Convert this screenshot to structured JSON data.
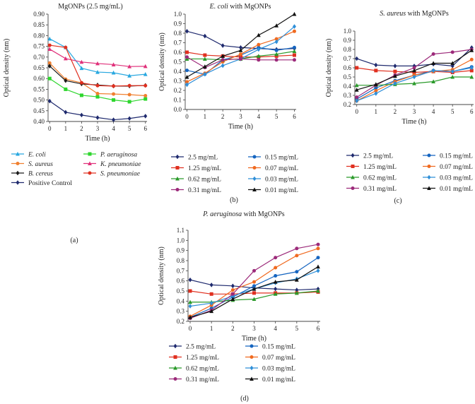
{
  "chart_data": [
    {
      "type": "line",
      "panel_label": "(a)",
      "title": "MgONPs (2.5 mg/mL)",
      "xlabel": "Time (h)",
      "ylabel": "Optical density (nm)",
      "x": [
        0,
        1,
        2,
        3,
        4,
        5,
        6
      ],
      "ylim": [
        0.4,
        0.9
      ],
      "yticks": [
        0.4,
        0.45,
        0.5,
        0.55,
        0.6,
        0.65,
        0.7,
        0.75,
        0.8,
        0.85,
        0.9
      ],
      "ytick_decimals": 2,
      "legend_columns": 2,
      "series": [
        {
          "name": "E. coli",
          "italic": true,
          "color": "#29a8e0",
          "marker": "triangle",
          "values": [
            0.785,
            0.745,
            0.648,
            0.63,
            0.627,
            0.613,
            0.62
          ]
        },
        {
          "name": "P. aeruginosa",
          "italic": true,
          "color": "#2dd62d",
          "marker": "square",
          "values": [
            0.6,
            0.55,
            0.522,
            0.515,
            0.5,
            0.492,
            0.505
          ]
        },
        {
          "name": "S. aureus",
          "italic": true,
          "color": "#f08030",
          "marker": "circle",
          "values": [
            0.672,
            0.597,
            0.58,
            0.53,
            0.528,
            0.525,
            0.52
          ]
        },
        {
          "name": "K. pneumoniae",
          "italic": true,
          "color": "#e0307a",
          "marker": "triangle",
          "values": [
            0.737,
            0.693,
            0.677,
            0.67,
            0.665,
            0.656,
            0.657
          ]
        },
        {
          "name": "B. cereus",
          "italic": true,
          "color": "#1a1a1a",
          "marker": "diamond",
          "values": [
            0.658,
            0.59,
            0.575,
            0.57,
            0.565,
            0.565,
            0.568
          ]
        },
        {
          "name": "S. pneumoniae",
          "italic": true,
          "color": "#e03020",
          "marker": "circle",
          "values": [
            0.755,
            0.745,
            0.58,
            0.567,
            0.565,
            0.567,
            0.567
          ]
        },
        {
          "name": "Positive Control",
          "italic": false,
          "color": "#1f2a6e",
          "marker": "diamond",
          "values": [
            0.495,
            0.443,
            0.43,
            0.418,
            0.408,
            0.414,
            0.425
          ]
        }
      ]
    },
    {
      "type": "line",
      "panel_label": "(b)",
      "title": "E. coli with MgONPs",
      "title_italic_words": 2,
      "xlabel": "Time (h)",
      "ylabel": "Optical density (nm)",
      "x": [
        0,
        1,
        2,
        3,
        4,
        5,
        6
      ],
      "ylim": [
        0.0,
        1.0
      ],
      "yticks": [
        0.0,
        0.1,
        0.2,
        0.3,
        0.4,
        0.5,
        0.6,
        0.7,
        0.8,
        0.9,
        1.0
      ],
      "ytick_decimals": 1,
      "legend_columns": 2,
      "series": [
        {
          "name": "2.5 mg/mL",
          "color": "#1f2a6e",
          "marker": "diamond",
          "values": [
            0.82,
            0.77,
            0.67,
            0.65,
            0.64,
            0.63,
            0.64
          ]
        },
        {
          "name": "0.15 mg/mL",
          "color": "#1565c0",
          "marker": "circle",
          "values": [
            0.41,
            0.37,
            0.52,
            0.57,
            0.65,
            0.62,
            0.65
          ]
        },
        {
          "name": "1.25 mg/mL",
          "color": "#e03020",
          "marker": "square",
          "values": [
            0.6,
            0.57,
            0.56,
            0.55,
            0.55,
            0.56,
            0.57
          ]
        },
        {
          "name": "0.07 mg/mL",
          "color": "#f06a20",
          "marker": "circle",
          "values": [
            0.29,
            0.38,
            0.5,
            0.58,
            0.68,
            0.74,
            0.82
          ]
        },
        {
          "name": "0.62 mg/mL",
          "color": "#2a9a2a",
          "marker": "triangle",
          "values": [
            0.53,
            0.53,
            0.52,
            0.53,
            0.56,
            0.58,
            0.61
          ]
        },
        {
          "name": "0.03 mg/mL",
          "color": "#2f8fd8",
          "marker": "diamond",
          "values": [
            0.26,
            0.37,
            0.46,
            0.53,
            0.63,
            0.71,
            0.87
          ]
        },
        {
          "name": "0.31 mg/mL",
          "color": "#9c2a7a",
          "marker": "circle",
          "values": [
            0.55,
            0.44,
            0.52,
            0.53,
            0.52,
            0.52,
            0.52
          ]
        },
        {
          "name": "0.01 mg/mL",
          "color": "#111111",
          "marker": "triangle",
          "values": [
            0.34,
            0.45,
            0.56,
            0.62,
            0.78,
            0.88,
            1.0
          ]
        }
      ]
    },
    {
      "type": "line",
      "panel_label": "(c)",
      "title": "S. aureus with MgONPs",
      "title_italic_words": 2,
      "xlabel": "Time (h)",
      "ylabel": "Optical density (nm)",
      "x": [
        0,
        1,
        2,
        3,
        4,
        5,
        6
      ],
      "ylim": [
        0.2,
        1.0
      ],
      "yticks": [
        0.2,
        0.3,
        0.4,
        0.5,
        0.6,
        0.7,
        0.8,
        0.9,
        1.0
      ],
      "ytick_decimals": 1,
      "legend_columns": 2,
      "series": [
        {
          "name": "2.5 mg/mL",
          "color": "#1f2a6e",
          "marker": "diamond",
          "values": [
            0.7,
            0.63,
            0.62,
            0.62,
            0.64,
            0.62,
            0.82
          ]
        },
        {
          "name": "0.15 mg/mL",
          "color": "#1565c0",
          "marker": "circle",
          "values": [
            0.26,
            0.38,
            0.46,
            0.52,
            0.57,
            0.56,
            0.61
          ]
        },
        {
          "name": "1.25 mg/mL",
          "color": "#e03020",
          "marker": "square",
          "values": [
            0.6,
            0.57,
            0.56,
            0.55,
            0.56,
            0.55,
            0.57
          ]
        },
        {
          "name": "0.07 mg/mL",
          "color": "#f06a20",
          "marker": "circle",
          "values": [
            0.24,
            0.35,
            0.45,
            0.52,
            0.56,
            0.58,
            0.69
          ]
        },
        {
          "name": "0.62 mg/mL",
          "color": "#2a9a2a",
          "marker": "triangle",
          "values": [
            0.41,
            0.41,
            0.42,
            0.43,
            0.45,
            0.5,
            0.5
          ]
        },
        {
          "name": "0.03 mg/mL",
          "color": "#2f8fd8",
          "marker": "diamond",
          "values": [
            0.24,
            0.32,
            0.43,
            0.5,
            0.57,
            0.56,
            0.6
          ]
        },
        {
          "name": "0.31 mg/mL",
          "color": "#9c2a7a",
          "marker": "circle",
          "values": [
            0.28,
            0.41,
            0.52,
            0.6,
            0.75,
            0.77,
            0.8
          ]
        },
        {
          "name": "0.01 mg/mL",
          "color": "#111111",
          "marker": "triangle",
          "values": [
            0.36,
            0.42,
            0.51,
            0.57,
            0.65,
            0.65,
            0.79
          ]
        }
      ]
    },
    {
      "type": "line",
      "panel_label": "(d)",
      "title": "P. aeruginosa with MgONPs",
      "title_italic_words": 2,
      "xlabel": "Time (h)",
      "ylabel": "Optical density (nm)",
      "x": [
        0,
        1,
        2,
        3,
        4,
        5,
        6
      ],
      "ylim": [
        0.2,
        1.1
      ],
      "yticks": [
        0.2,
        0.3,
        0.4,
        0.5,
        0.6,
        0.7,
        0.8,
        0.9,
        1.0,
        1.1
      ],
      "ytick_decimals": 1,
      "legend_columns": 2,
      "series": [
        {
          "name": "2.5 mg/mL",
          "color": "#1f2a6e",
          "marker": "diamond",
          "values": [
            0.61,
            0.56,
            0.55,
            0.53,
            0.52,
            0.51,
            0.52
          ]
        },
        {
          "name": "0.15 mg/mL",
          "color": "#1565c0",
          "marker": "circle",
          "values": [
            0.24,
            0.33,
            0.44,
            0.55,
            0.65,
            0.69,
            0.83
          ]
        },
        {
          "name": "1.25 mg/mL",
          "color": "#e03020",
          "marker": "square",
          "values": [
            0.5,
            0.47,
            0.47,
            0.48,
            0.48,
            0.48,
            0.49
          ]
        },
        {
          "name": "0.07 mg/mL",
          "color": "#f06a20",
          "marker": "circle",
          "values": [
            0.25,
            0.36,
            0.51,
            0.59,
            0.73,
            0.85,
            0.92
          ]
        },
        {
          "name": "0.62 mg/mL",
          "color": "#2a9a2a",
          "marker": "triangle",
          "values": [
            0.39,
            0.39,
            0.41,
            0.42,
            0.47,
            0.48,
            0.5
          ]
        },
        {
          "name": "0.03 mg/mL",
          "color": "#2f8fd8",
          "marker": "diamond",
          "values": [
            0.35,
            0.38,
            0.45,
            0.52,
            0.58,
            0.62,
            0.7
          ]
        },
        {
          "name": "0.31 mg/mL",
          "color": "#9c2a7a",
          "marker": "circle",
          "values": [
            0.23,
            0.31,
            0.47,
            0.7,
            0.83,
            0.92,
            0.96
          ]
        },
        {
          "name": "0.01 mg/mL",
          "color": "#111111",
          "marker": "triangle",
          "values": [
            0.24,
            0.3,
            0.42,
            0.52,
            0.59,
            0.61,
            0.74
          ]
        }
      ]
    }
  ]
}
